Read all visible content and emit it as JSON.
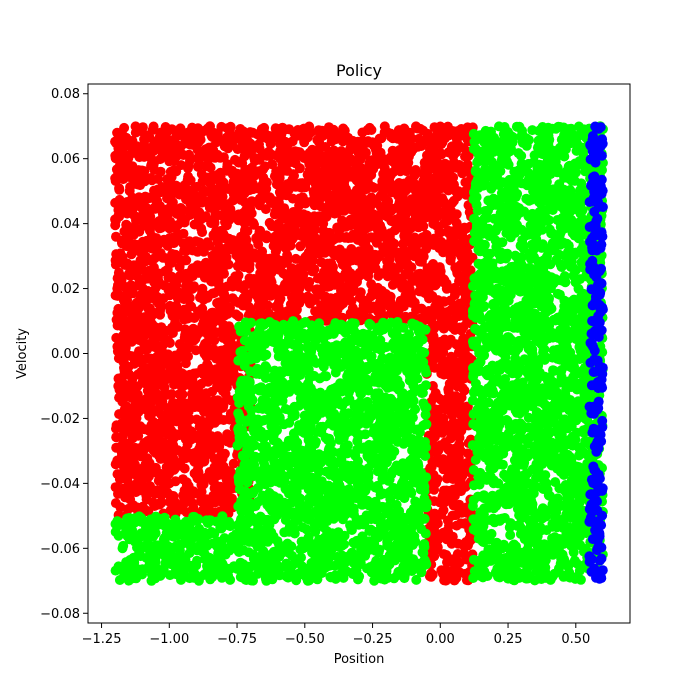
{
  "chart_data": {
    "type": "scatter",
    "title": "Policy",
    "xlabel": "Position",
    "ylabel": "Velocity",
    "xlim": [
      -1.3,
      0.7
    ],
    "ylim": [
      -0.083,
      0.083
    ],
    "xticks": [
      -1.25,
      -1.0,
      -0.75,
      -0.5,
      -0.25,
      0.0,
      0.25,
      0.5
    ],
    "xtick_labels": [
      "−1.25",
      "−1.00",
      "−0.75",
      "−0.50",
      "−0.25",
      "0.00",
      "0.25",
      "0.50"
    ],
    "yticks": [
      -0.08,
      -0.06,
      -0.04,
      -0.02,
      0.0,
      0.02,
      0.04,
      0.06,
      0.08
    ],
    "ytick_labels": [
      "−0.08",
      "−0.06",
      "−0.04",
      "−0.02",
      "0.00",
      "0.02",
      "0.04",
      "0.06",
      "0.08"
    ],
    "grid": false,
    "legend": "none",
    "series": [
      {
        "color": "#ff0000",
        "regions": [
          {
            "x_range": [
              -1.2,
              0.12
            ],
            "y_range": [
              0.01,
              0.07
            ]
          },
          {
            "x_range": [
              -1.2,
              -0.7
            ],
            "y_range": [
              -0.05,
              0.01
            ]
          },
          {
            "x_range": [
              -0.05,
              0.12
            ],
            "y_range": [
              -0.07,
              0.01
            ]
          }
        ]
      },
      {
        "color": "#00ff00",
        "regions": [
          {
            "x_range": [
              -1.2,
              -0.05
            ],
            "y_range": [
              -0.07,
              -0.05
            ]
          },
          {
            "x_range": [
              -0.75,
              -0.05
            ],
            "y_range": [
              -0.05,
              0.01
            ]
          },
          {
            "x_range": [
              0.12,
              0.6
            ],
            "y_range": [
              -0.07,
              0.07
            ]
          }
        ]
      },
      {
        "color": "#0000ff",
        "regions": [
          {
            "x_range": [
              0.55,
              0.6
            ],
            "y_range": [
              -0.07,
              0.07
            ]
          }
        ]
      }
    ]
  }
}
